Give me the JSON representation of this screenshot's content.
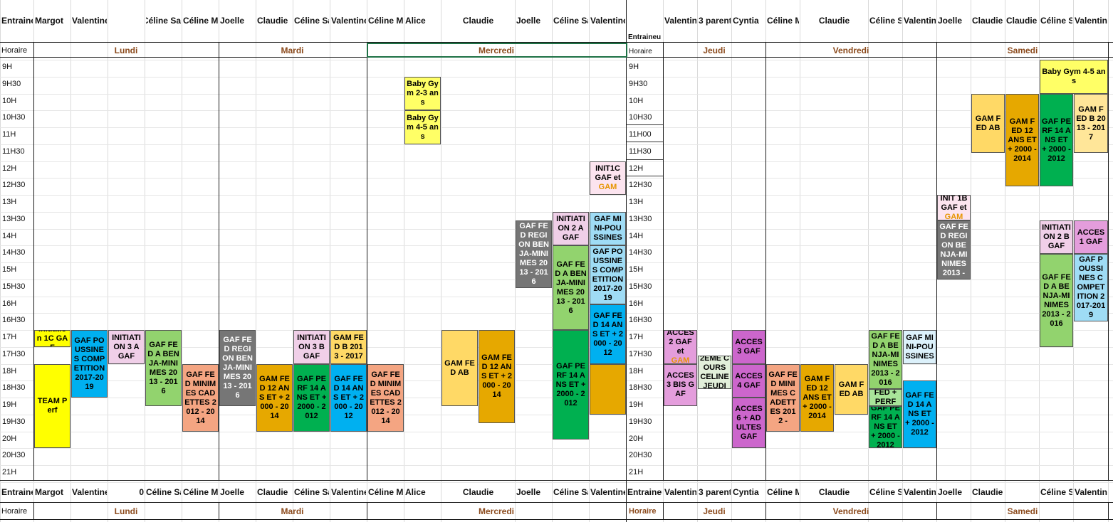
{
  "top_header": {
    "trainers_left": [
      "Entraine",
      "Margot",
      "Valentine",
      "",
      "Céline Sa",
      "Céline Mi",
      "Joelle",
      "Claudie",
      "Céline Sa",
      "Valentine",
      "Céline Mi",
      "Alice",
      "Claudie",
      "Joelle",
      "Céline Sa",
      "Valentine"
    ],
    "trainers_right": [
      "",
      "Valentin",
      "3 parents",
      "Cyntia",
      "Céline M",
      "Claudie",
      "Céline Sa",
      "Valentin",
      "Joelle",
      "Claudie",
      "Claudie",
      "Céline Sa",
      "Valentine"
    ],
    "entraineur_label": "Entraineu"
  },
  "days_row": {
    "horaire_label": "Horaire",
    "horaire_label_right": "Horaire",
    "days": [
      "Lundi",
      "Mardi",
      "Mercredi",
      "Jeudi",
      "Vendredi",
      "Samedi"
    ]
  },
  "times_left": [
    "9H",
    "9H30",
    "10H",
    "10H30",
    "11H",
    "11H30",
    "12H",
    "12H30",
    "13H",
    "13H30",
    "14H",
    "14H30",
    "15H",
    "15H30",
    "16H",
    "16H30",
    "17H",
    "17H30",
    "18H",
    "18H30",
    "19H",
    "19H30",
    "20H",
    "20H30",
    "21H"
  ],
  "times_right": [
    "9H",
    "9H30",
    "10H",
    "10H30",
    "11H00",
    "11H30",
    "12H",
    "12H30",
    "13H",
    "13H30",
    "14H",
    "14H30",
    "15H",
    "15H30",
    "16H",
    "16H30",
    "17H",
    "17H30",
    "18H",
    "18H30",
    "19H",
    "19H30",
    "20H",
    "20H30",
    "21H"
  ],
  "blocks": [
    {
      "id": "b1",
      "text": "Initiation 1C GAF",
      "color": "#ffff00"
    },
    {
      "id": "b2",
      "text": "TEAM Perf",
      "color": "#ffff00"
    },
    {
      "id": "b3",
      "text": "GAF POUSSINES COMPETITION 2017-2019",
      "color": "#00b0f0"
    },
    {
      "id": "b4",
      "text": "INITIATION 3 A GAF",
      "color": "#f0cfe8"
    },
    {
      "id": "b5",
      "text": "GAF FED A BENJA-MINIMES 2013 - 2016",
      "color": "#92d36e"
    },
    {
      "id": "b6",
      "text": "GAF FED MINIMES CADETTES 2012 - 2014",
      "color": "#f4a582"
    },
    {
      "id": "b7",
      "text": "GAF FED REGION BENJA-MINIMES 2013 - 2016",
      "color": "#767676"
    },
    {
      "id": "b8",
      "text": "INITIATION 3 B GAF",
      "color": "#f0cfe8"
    },
    {
      "id": "b9",
      "text": "GAM FED B 2013 - 2017",
      "color": "#ffd966"
    },
    {
      "id": "b10",
      "text": "GAM FED 12 ANS ET + 2000 - 2014",
      "color": "#e6a800"
    },
    {
      "id": "b11",
      "text": "GAF PERF 14 ANS ET + 2000 - 2012",
      "color": "#00b050"
    },
    {
      "id": "b12",
      "text": "GAF FED 14 ANS ET + 2000 - 2012",
      "color": "#00b0f0"
    },
    {
      "id": "b13",
      "text": "GAF FED MINIMES CADETTES 2012 - 2014",
      "color": "#f4a582"
    },
    {
      "id": "b14",
      "text": "Baby Gym 2-3 ans",
      "color": "#ffff66"
    },
    {
      "id": "b15",
      "text": "Baby Gym 4-5 ans",
      "color": "#ffff66"
    },
    {
      "id": "b16",
      "text": "GAM FED AB",
      "color": "#ffd966"
    },
    {
      "id": "b17",
      "text": "GAM FED 12 ANS ET + 2000 - 2014",
      "color": "#e6a800"
    },
    {
      "id": "b18",
      "text": "GAF FED REGION BENJA-MINIMES 2013 - 2016",
      "color": "#767676"
    },
    {
      "id": "b19",
      "text": "INITIATION 2 A GAF",
      "color": "#f0cfe8"
    },
    {
      "id": "b20",
      "text": "GAF FED A BENJA-MINIMES 2013 - 2016",
      "color": "#92d36e"
    },
    {
      "id": "b21",
      "text": "GAF PERF 14 ANS ET + 2000 - 2012",
      "color": "#00b050"
    },
    {
      "id": "b22",
      "text": "INIT1C GAF et",
      "text2": "GAM",
      "color": "#fce4ef"
    },
    {
      "id": "b23",
      "text": "GAF MINI-POUSSINES",
      "color": "#9fdcf5"
    },
    {
      "id": "b24",
      "text": "GAF POUSSINES COMPETITION 2017-2019",
      "color": "#9fdcf5"
    },
    {
      "id": "b25",
      "text": "GAF FED 14 ANS ET + 2000 - 2012",
      "color": "#00b0f0"
    },
    {
      "id": "b26",
      "text": "",
      "color": "#e6a800"
    },
    {
      "id": "b27",
      "text": "ACCES 2 GAF et",
      "text2": "GAM",
      "color": "#e49ddc"
    },
    {
      "id": "b28",
      "text": "ACCES 3 BIS GAF",
      "color": "#e49ddc"
    },
    {
      "id": "b29",
      "text": "2EME COURS CELINE JEUDI",
      "color": "#e2efda"
    },
    {
      "id": "b30",
      "text": "ACCES 3 GAF",
      "color": "#cc66cc"
    },
    {
      "id": "b31",
      "text": "ACCES 4 GAF",
      "color": "#cc66cc"
    },
    {
      "id": "b32",
      "text": "ACCES 6 + ADULTES GAF",
      "color": "#cc66cc"
    },
    {
      "id": "b33",
      "text": "GAF FED MINIMES CADETTES 2012 -",
      "color": "#f4a582"
    },
    {
      "id": "b34",
      "text": "GAM FED 12 ANS ET + 2000 - 2014",
      "color": "#e6a800"
    },
    {
      "id": "b35",
      "text": "GAM FED AB",
      "color": "#ffd966"
    },
    {
      "id": "b36",
      "text": "GAF FED A BENJA-MINIMES 2013 - 2016",
      "color": "#92d36e"
    },
    {
      "id": "b37",
      "text": "FED + PERF",
      "color": "#a9e59a"
    },
    {
      "id": "b38",
      "text": "GAF PERF 14 ANS ET + 2000 - 2012",
      "color": "#00b050"
    },
    {
      "id": "b39",
      "text": "GAF MINI-POUSSINES",
      "color": "#dcf1fb"
    },
    {
      "id": "b40",
      "text": "GAF FED 14 ANS ET + 2000 - 2012",
      "color": "#00b0f0"
    },
    {
      "id": "b41",
      "text": "INIT 1B GAF et",
      "text2": "GAM",
      "color": "#fce4ef"
    },
    {
      "id": "b42",
      "text": "GAF FED REGION BENJA-MINIMES 2013 -",
      "color": "#767676"
    },
    {
      "id": "b43",
      "text": "Baby Gym 4-5 ans",
      "color": "#ffff66"
    },
    {
      "id": "b44",
      "text": "GAM FED AB",
      "color": "#ffd966"
    },
    {
      "id": "b45",
      "text": "GAM FED 12 ANS ET + 2000 - 2014",
      "color": "#e6a800"
    },
    {
      "id": "b46",
      "text": "GAF PERF 14 ANS ET + 2000 - 2012",
      "color": "#00b050"
    },
    {
      "id": "b47",
      "text": "GAM FED B 2013 - 2017",
      "color": "#ffe699"
    },
    {
      "id": "b48",
      "text": "INITIATION 2 B GAF",
      "color": "#f0cfe8"
    },
    {
      "id": "b49",
      "text": "ACCES 1 GAF",
      "color": "#e49ddc"
    },
    {
      "id": "b50",
      "text": "GAF FED A BENJA-MINIMES 2013 - 2016",
      "color": "#92d36e"
    },
    {
      "id": "b51",
      "text": "GAF POUSSINES COMPETITION 2017-2019",
      "color": "#9fdcf5"
    }
  ],
  "bottom_header": {
    "trainers": [
      "Entraine",
      "Margot",
      "Valentine",
      "0",
      "Céline Sa",
      "Céline M",
      "Joelle",
      "Claudie",
      "Céline Sa",
      "Valentine",
      "Céline M",
      "Alice",
      "Claudie",
      "Joelle",
      "Céline Sa",
      "Valentine",
      "Entraineu",
      "Valentin",
      "3 parent",
      "Cyntia",
      "Céline M",
      "Claudie",
      "Céline S",
      "Valentin",
      "Joelle",
      "Claudie",
      "",
      "Céline S",
      "Valentine"
    ]
  },
  "bottom_days": {
    "horaire_label": "Horaire",
    "horaire_label_right": "Horaire",
    "days": [
      "Lundi",
      "Mardi",
      "Mercredi",
      "Jeudi",
      "Vendredi",
      "Samedi"
    ]
  }
}
